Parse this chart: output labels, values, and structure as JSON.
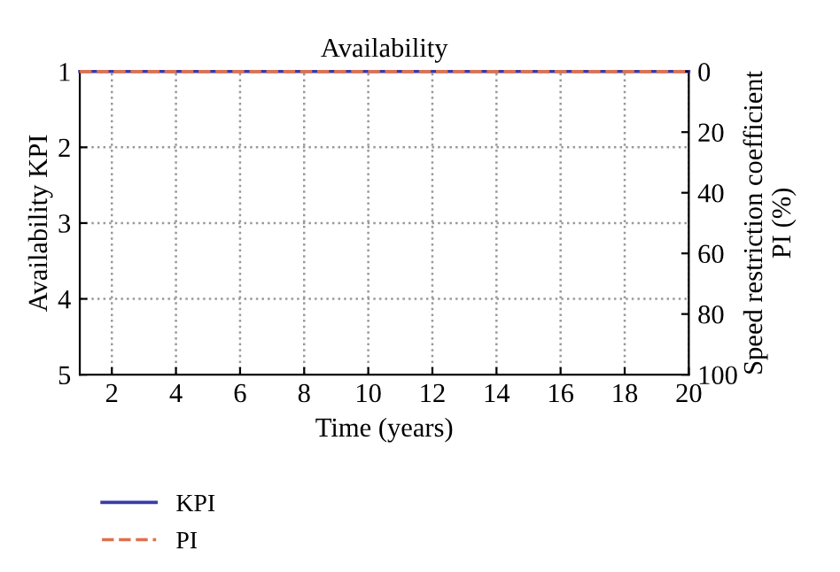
{
  "chart_data": {
    "type": "line",
    "title": "Availability",
    "xlabel": "Time (years)",
    "ylabel": "Availability KPI",
    "y2label": "Speed restriction coefficient\nPI (%)",
    "x": [
      1,
      20
    ],
    "series": [
      {
        "name": "KPI",
        "color": "#3a3aa8",
        "values": [
          1,
          1
        ],
        "line_style": "solid"
      },
      {
        "name": "PI",
        "color": "#e0704a",
        "values": [
          0,
          0
        ],
        "axis": "y2",
        "line_style": "dashed"
      }
    ],
    "xlim": [
      1,
      20
    ],
    "xticks": [
      2,
      4,
      6,
      8,
      10,
      12,
      14,
      16,
      18,
      20
    ],
    "ylim": [
      5,
      1
    ],
    "yticks": [
      1,
      2,
      3,
      4,
      5
    ],
    "y2lim": [
      100,
      0
    ],
    "y2ticks": [
      0,
      20,
      40,
      60,
      80,
      100
    ],
    "grid": true,
    "legend": "bottom",
    "marker": "none"
  }
}
